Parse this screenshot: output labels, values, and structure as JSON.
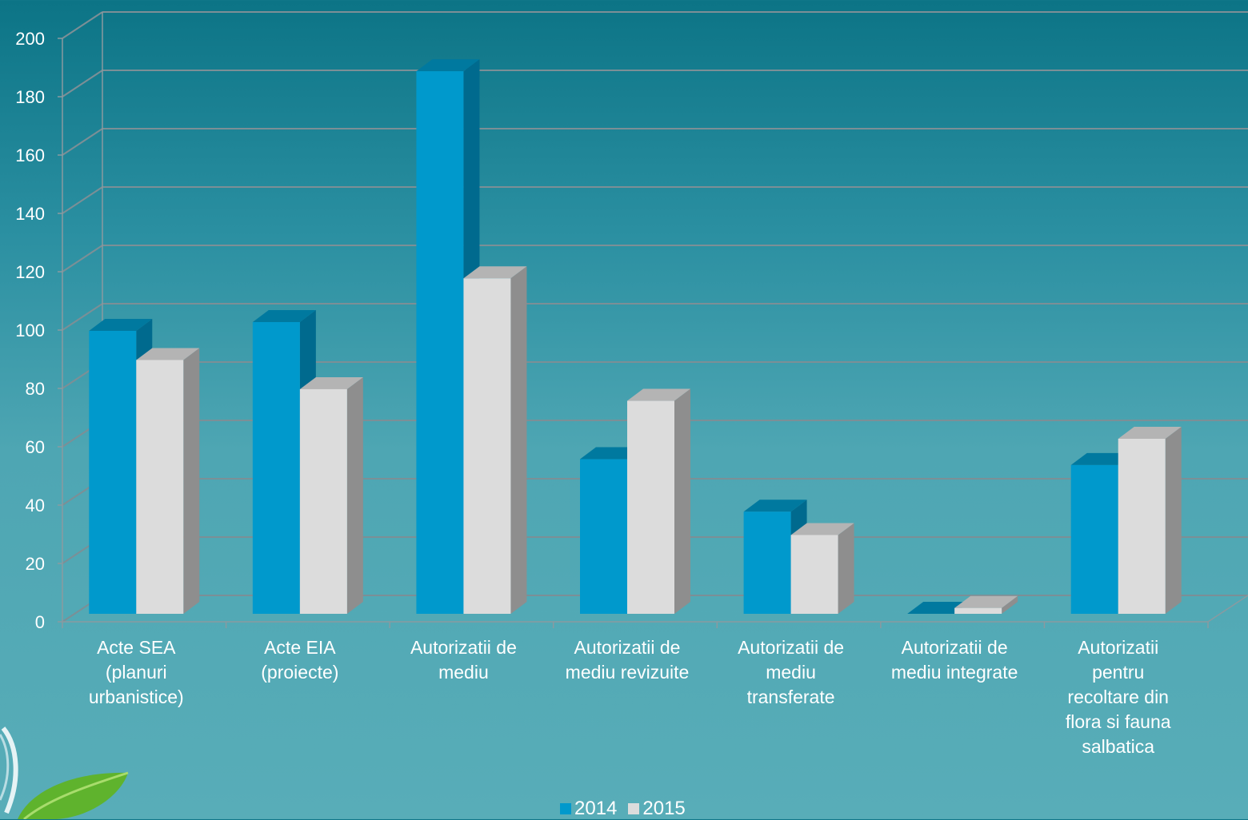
{
  "chart_data": {
    "type": "bar",
    "title": "",
    "xlabel": "",
    "ylabel": "",
    "ylim": [
      0,
      200
    ],
    "yticks": [
      0,
      20,
      40,
      60,
      80,
      100,
      120,
      140,
      160,
      180,
      200
    ],
    "categories": [
      "Acte SEA (planuri urbanistice)",
      "Acte EIA (proiecte)",
      "Autorizatii de mediu",
      "Autorizatii de mediu revizuite",
      "Autorizatii de mediu transferate",
      "Autorizatii de mediu integrate",
      "Autorizatii pentru recoltare din flora si fauna salbatica"
    ],
    "category_lines": [
      [
        "Acte SEA",
        "(planuri",
        "urbanistice)"
      ],
      [
        "Acte EIA",
        "(proiecte)"
      ],
      [
        "Autorizatii de",
        "mediu"
      ],
      [
        "Autorizatii de",
        "mediu revizuite"
      ],
      [
        "Autorizatii de",
        "mediu",
        "transferate"
      ],
      [
        "Autorizatii de",
        "mediu integrate"
      ],
      [
        "Autorizatii",
        "pentru",
        "recoltare din",
        "flora si fauna",
        "salbatica"
      ]
    ],
    "series": [
      {
        "name": "2014",
        "values": [
          97,
          100,
          186,
          53,
          35,
          0,
          51
        ],
        "color": "#0099cc",
        "side_color": "#006a8e",
        "top_color": "#00799f"
      },
      {
        "name": "2015",
        "values": [
          87,
          77,
          115,
          73,
          27,
          2,
          60
        ],
        "color": "#dcdcdc",
        "side_color": "#8e8e8e",
        "top_color": "#b4b4b4"
      }
    ],
    "grid": true,
    "legend_position": "bottom",
    "legend": [
      "2014",
      "2015"
    ]
  },
  "logo": {
    "icon": "leaf-logo-icon"
  }
}
